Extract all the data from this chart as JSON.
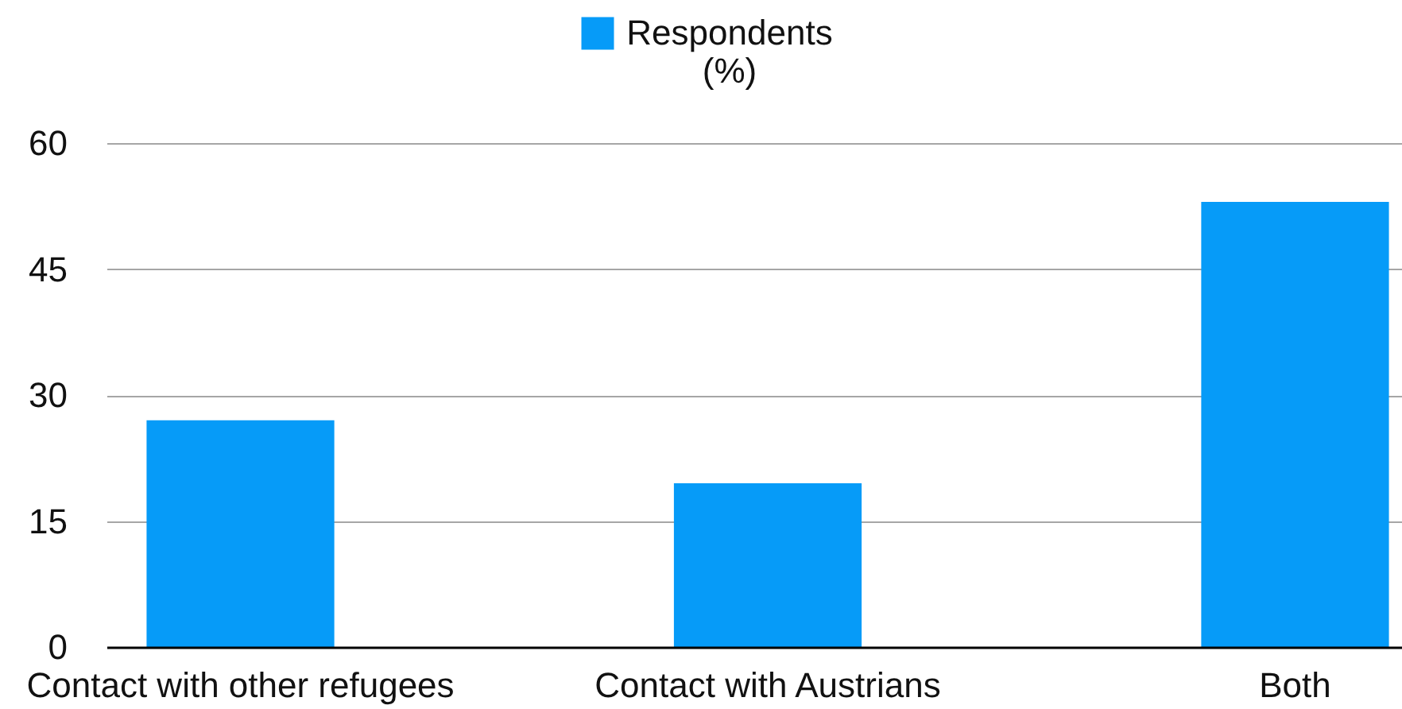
{
  "chart_data": {
    "type": "bar",
    "categories": [
      "Contact with other refugees",
      "Contact with Austrians",
      "Both"
    ],
    "series": [
      {
        "name": "Respondents (%)",
        "color": "#069bf8",
        "values": [
          27,
          19.5,
          53
        ]
      }
    ],
    "ylim": [
      0,
      60
    ],
    "yticks": [
      0,
      15,
      30,
      45,
      60
    ],
    "grid": "y",
    "legend": "top"
  }
}
